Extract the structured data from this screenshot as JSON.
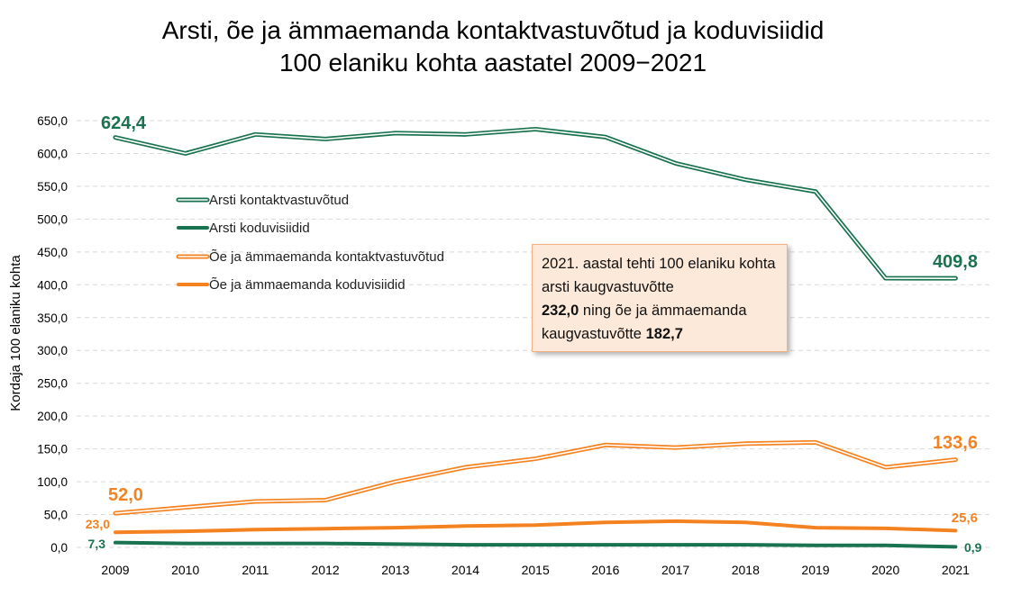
{
  "chart_data": {
    "type": "line",
    "title": "Arsti, õe ja ämmaemanda kontaktvastuvõtud ja koduvisiidid",
    "subtitle": "100 elaniku kohta aastatel 2009−2021",
    "ylabel": "Kordaja 100 elaniku kohta",
    "xlabel": "",
    "ylim": [
      0,
      650
    ],
    "yticks": [
      "0,0",
      "50,0",
      "100,0",
      "150,0",
      "200,0",
      "250,0",
      "300,0",
      "350,0",
      "400,0",
      "450,0",
      "500,0",
      "550,0",
      "600,0",
      "650,0"
    ],
    "grid": true,
    "legend_position": "upper-left inside",
    "categories": [
      "2009",
      "2010",
      "2011",
      "2012",
      "2013",
      "2014",
      "2015",
      "2016",
      "2017",
      "2018",
      "2019",
      "2020",
      "2021"
    ],
    "series": [
      {
        "name": "Arsti kontaktvastuvõtud",
        "color": "#1a7350",
        "style": "double",
        "values": [
          624.4,
          600,
          629,
          622,
          631,
          629,
          637,
          625,
          585,
          560,
          542,
          410,
          409.8
        ],
        "labels": {
          "first": "624,4",
          "last": "409,8"
        }
      },
      {
        "name": "Arsti koduvisiidid",
        "color": "#1a7350",
        "style": "solid",
        "values": [
          7.3,
          6,
          6,
          6,
          5,
          4,
          4,
          4,
          4,
          4,
          3,
          3,
          0.9
        ],
        "labels": {
          "first": "7,3",
          "last": "0,9"
        }
      },
      {
        "name": "Õe ja ämmaemanda kontaktvastuvõtud",
        "color": "#f58220",
        "style": "double",
        "values": [
          52.0,
          61,
          70,
          72,
          100,
          122,
          135,
          156,
          152,
          158,
          160,
          122,
          133.6
        ],
        "labels": {
          "first": "52,0",
          "last": "133,6"
        }
      },
      {
        "name": "Õe ja ämmaemanda koduvisiidid",
        "color": "#f58220",
        "style": "solid",
        "values": [
          23.0,
          24.5,
          27,
          28.5,
          30,
          32.5,
          34,
          38,
          40,
          38,
          30,
          29,
          25.6
        ],
        "labels": {
          "first": "23,0",
          "last": "25,6"
        }
      }
    ],
    "annotation": {
      "text_1": "2021. aastal tehti 100 elaniku kohta arsti kaugvastuvõtte",
      "value_1": "232,0",
      "text_2": "ning õe ja ämmaemanda kaugvastuvõtte",
      "value_2": "182,7",
      "background": "#fde9d9"
    }
  }
}
